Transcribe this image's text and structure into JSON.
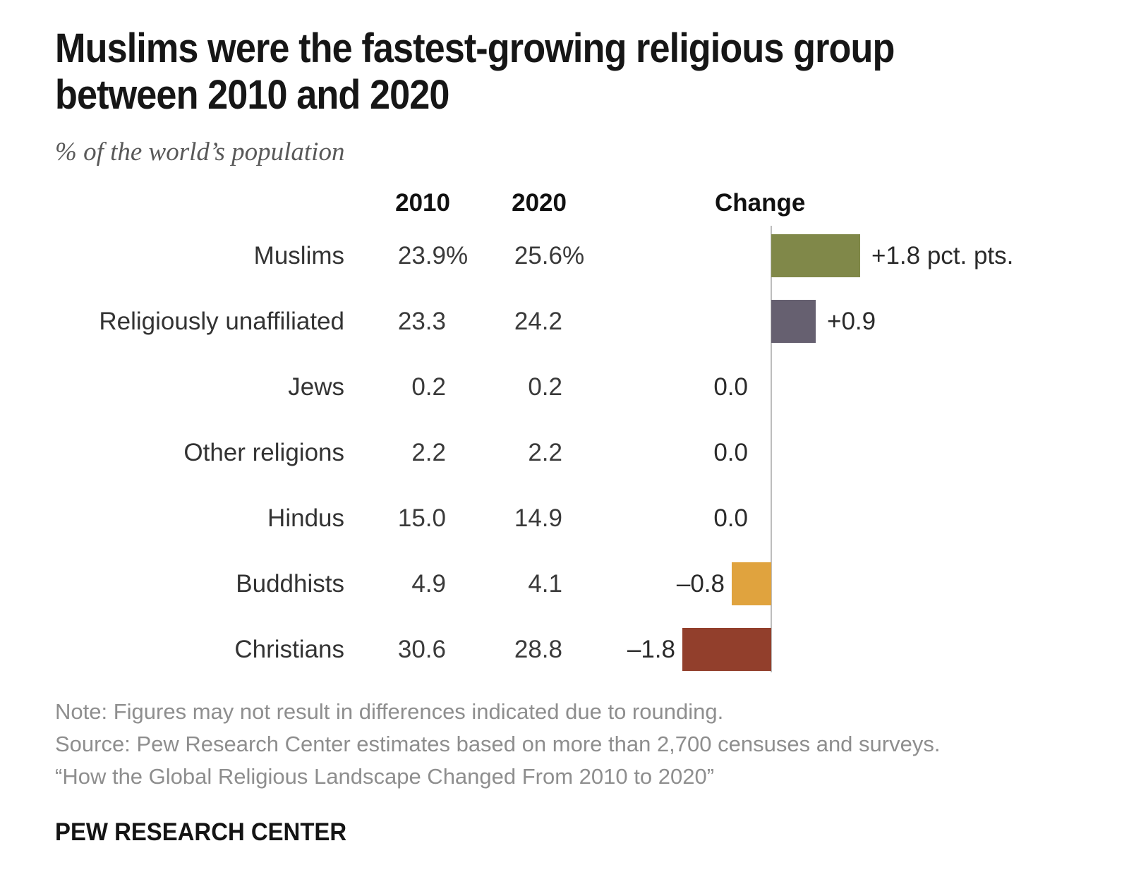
{
  "header": {
    "title_line1": "Muslims were the fastest-growing religious group",
    "title_line2": "between 2010 and 2020",
    "subtitle": "% of the world’s population"
  },
  "columns": {
    "y2010": "2010",
    "y2020": "2020",
    "change": "Change"
  },
  "rows": [
    {
      "label": "Muslims",
      "v2010": "23.9",
      "v2020": "25.6",
      "pct": "%",
      "change": 1.8,
      "change_label": "+1.8 pct. pts.",
      "color": "#808849"
    },
    {
      "label": "Religiously unaffiliated",
      "v2010": "23.3",
      "v2020": "24.2",
      "pct": "",
      "change": 0.9,
      "change_label": "+0.9",
      "color": "#666070"
    },
    {
      "label": "Jews",
      "v2010": "0.2",
      "v2020": "0.2",
      "pct": "",
      "change": 0,
      "change_label": "0.0",
      "color": null
    },
    {
      "label": "Other religions",
      "v2010": "2.2",
      "v2020": "2.2",
      "pct": "",
      "change": 0,
      "change_label": "0.0",
      "color": null
    },
    {
      "label": "Hindus",
      "v2010": "15.0",
      "v2020": "14.9",
      "pct": "",
      "change": 0,
      "change_label": "0.0",
      "color": null
    },
    {
      "label": "Buddhists",
      "v2010": "4.9",
      "v2020": "4.1",
      "pct": "",
      "change": -0.8,
      "change_label": "–0.8",
      "color": "#E0A33E"
    },
    {
      "label": "Christians",
      "v2010": "30.6",
      "v2020": "28.8",
      "pct": "",
      "change": -1.8,
      "change_label": "–1.8",
      "color": "#923F2C"
    }
  ],
  "chart_data": {
    "type": "bar",
    "orientation": "horizontal",
    "title": "Muslims were the fastest-growing religious group between 2010 and 2020",
    "subtitle": "% of the world's population",
    "categories": [
      "Muslims",
      "Religiously unaffiliated",
      "Jews",
      "Other religions",
      "Hindus",
      "Buddhists",
      "Christians"
    ],
    "series": [
      {
        "name": "2010",
        "values": [
          23.9,
          23.3,
          0.2,
          2.2,
          15.0,
          4.9,
          30.6
        ]
      },
      {
        "name": "2020",
        "values": [
          25.6,
          24.2,
          0.2,
          2.2,
          14.9,
          4.1,
          28.8
        ]
      },
      {
        "name": "Change",
        "values": [
          1.8,
          0.9,
          0.0,
          0.0,
          0.0,
          -0.8,
          -1.8
        ]
      }
    ],
    "bar_series": "Change",
    "unit": "pct. pts.",
    "xlim": [
      -1.8,
      1.8
    ],
    "grid": false,
    "legend": false,
    "bar_colors": [
      "#808849",
      "#666070",
      null,
      null,
      null,
      "#E0A33E",
      "#923F2C"
    ],
    "axis_color": "#BDBDBD"
  },
  "footer": {
    "note": "Note: Figures may not result in differences indicated due to rounding.",
    "source": "Source: Pew Research Center estimates based on more than 2,700 censuses and surveys.",
    "citation": "“How the Global Religious Landscape Changed From 2010 to 2020”",
    "brand": "PEW RESEARCH CENTER"
  }
}
